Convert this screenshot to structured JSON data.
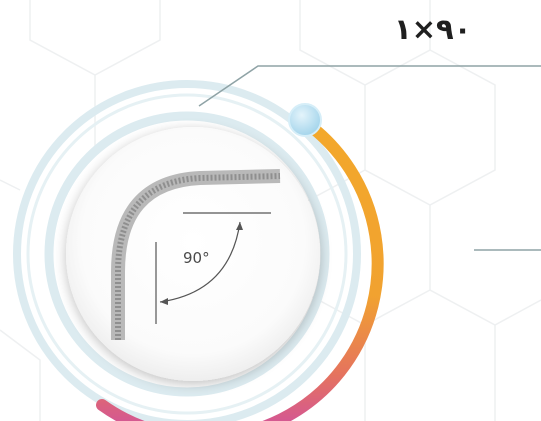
{
  "label": "۱×۹۰",
  "diagram": {
    "angle_label": "90°"
  },
  "colors": {
    "ring_light": "#dcebf0",
    "gauge_orange": "#f3a82b",
    "gauge_magenta": "#cf4fa2",
    "knob_blue": "#bfe3f3",
    "leader_line": "#8fa3a6",
    "pipe_gray": "#9a9a9a"
  }
}
